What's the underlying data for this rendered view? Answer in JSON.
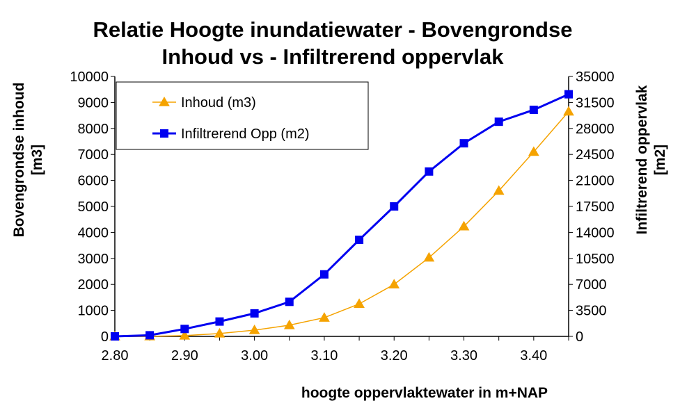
{
  "chart_data": {
    "type": "line",
    "title_lines": [
      "Relatie Hoogte inundatiewater - Bovengrondse",
      "Inhoud vs - Infiltrerend oppervlak"
    ],
    "xlabel": "hoogte oppervlaktewater in m+NAP",
    "ylabel_left_lines": [
      "Bovengrondse inhoud",
      "[m3]"
    ],
    "ylabel_right_lines": [
      "Infiltrerend oppervlak",
      "[m2]"
    ],
    "x": [
      2.8,
      2.85,
      2.9,
      2.95,
      3.0,
      3.05,
      3.1,
      3.15,
      3.2,
      3.25,
      3.3,
      3.35,
      3.4,
      3.45
    ],
    "xlim": [
      2.8,
      3.45
    ],
    "x_ticks": [
      "2.80",
      "2.90",
      "3.00",
      "3.10",
      "3.20",
      "3.30",
      "3.40"
    ],
    "ylim_left": [
      0,
      10000
    ],
    "y_ticks_left": [
      "0",
      "1000",
      "2000",
      "3000",
      "4000",
      "5000",
      "6000",
      "7000",
      "8000",
      "9000",
      "10000"
    ],
    "ylim_right": [
      0,
      35000
    ],
    "y_ticks_right": [
      "0",
      "3500",
      "7000",
      "10500",
      "14000",
      "17500",
      "21000",
      "24500",
      "28000",
      "31500",
      "35000"
    ],
    "grid": false,
    "legend_position": "top-left",
    "series": [
      {
        "name": "Inhoud (m3)",
        "axis": "left",
        "marker": "triangle",
        "color": "#F5A300",
        "values": [
          0,
          5,
          30,
          110,
          240,
          430,
          720,
          1250,
          2000,
          3030,
          4230,
          5600,
          7100,
          8650
        ]
      },
      {
        "name": "Infiltrerend Opp (m2)",
        "axis": "right",
        "marker": "square",
        "color": "#0000F0",
        "values": [
          0,
          150,
          1000,
          2000,
          3100,
          4650,
          8350,
          13000,
          17500,
          22200,
          26000,
          28900,
          30500,
          32600
        ]
      }
    ]
  }
}
